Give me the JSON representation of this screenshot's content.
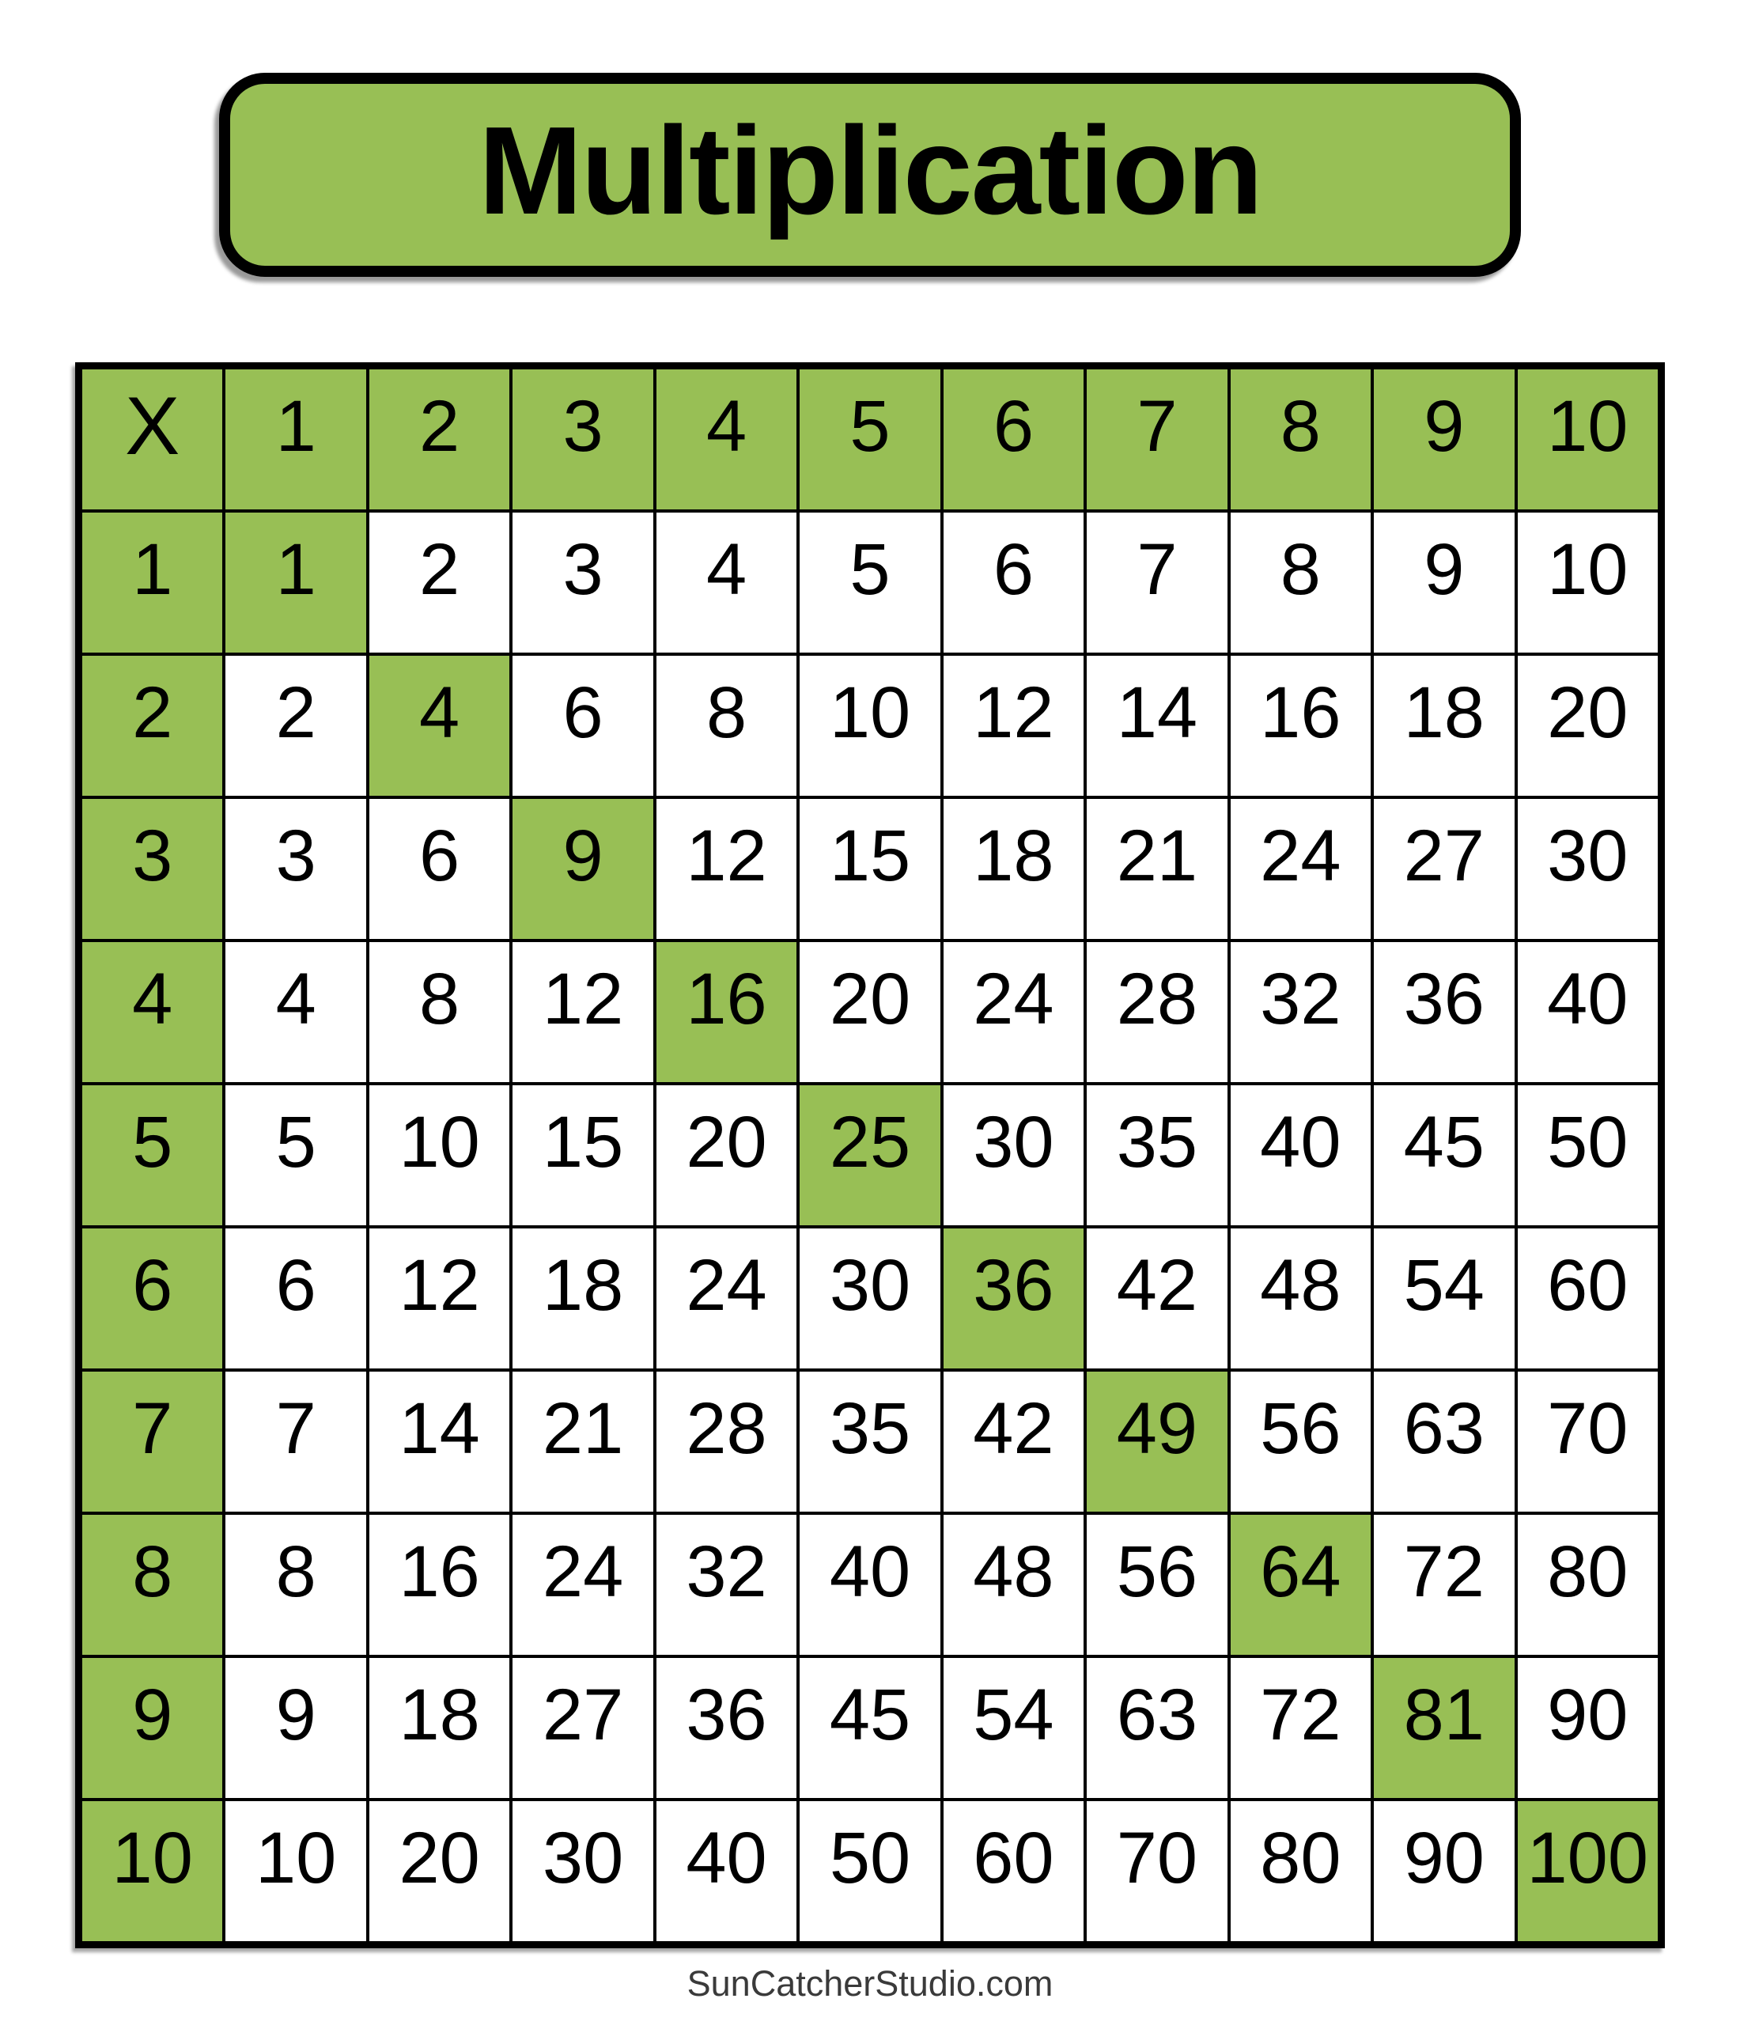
{
  "page": {
    "title": "Multiplication",
    "footer": "SunCatcherStudio.com"
  },
  "colors": {
    "cell_green": "#98bf55",
    "grid_black": "#000000",
    "cell_white": "#ffffff",
    "title_text": "#000000",
    "footer_text": "#3a3a3a",
    "page_bg": "#ffffff"
  },
  "table": {
    "corner_label": "X",
    "column_headers": [
      "1",
      "2",
      "3",
      "4",
      "5",
      "6",
      "7",
      "8",
      "9",
      "10"
    ],
    "row_headers": [
      "1",
      "2",
      "3",
      "4",
      "5",
      "6",
      "7",
      "8",
      "9",
      "10"
    ],
    "rows": [
      [
        1,
        2,
        3,
        4,
        5,
        6,
        7,
        8,
        9,
        10
      ],
      [
        2,
        4,
        6,
        8,
        10,
        12,
        14,
        16,
        18,
        20
      ],
      [
        3,
        6,
        9,
        12,
        15,
        18,
        21,
        24,
        27,
        30
      ],
      [
        4,
        8,
        12,
        16,
        20,
        24,
        28,
        32,
        36,
        40
      ],
      [
        5,
        10,
        15,
        20,
        25,
        30,
        35,
        40,
        45,
        50
      ],
      [
        6,
        12,
        18,
        24,
        30,
        36,
        42,
        48,
        54,
        60
      ],
      [
        7,
        14,
        21,
        28,
        35,
        42,
        49,
        56,
        63,
        70
      ],
      [
        8,
        16,
        24,
        32,
        40,
        48,
        56,
        64,
        72,
        80
      ],
      [
        9,
        18,
        27,
        36,
        45,
        54,
        63,
        72,
        81,
        90
      ],
      [
        10,
        20,
        30,
        40,
        50,
        60,
        70,
        80,
        90,
        100
      ]
    ]
  }
}
